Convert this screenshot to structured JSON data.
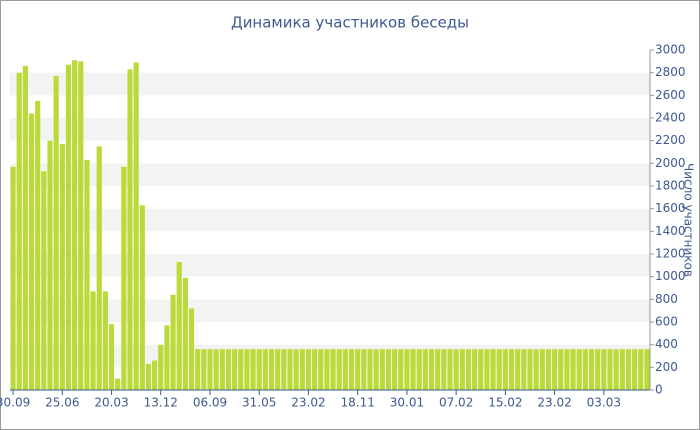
{
  "chart_data": {
    "type": "bar",
    "title": "Динамика участников беседы",
    "y_label": "Число участников",
    "color": "#bada3a",
    "categories": [
      "30.09",
      null,
      null,
      null,
      null,
      null,
      null,
      null,
      "25.06",
      null,
      null,
      null,
      null,
      null,
      null,
      null,
      "20.03",
      null,
      null,
      null,
      null,
      null,
      null,
      null,
      "13.12",
      null,
      null,
      null,
      null,
      null,
      null,
      null,
      "06.09",
      null,
      null,
      null,
      null,
      null,
      null,
      null,
      "31.05",
      null,
      null,
      null,
      null,
      null,
      null,
      null,
      "23.02",
      null,
      null,
      null,
      null,
      null,
      null,
      null,
      "18.11",
      null,
      null,
      null,
      null,
      null,
      null,
      null,
      "30.01",
      null,
      null,
      null,
      null,
      null,
      null,
      null,
      "07.02",
      null,
      null,
      null,
      null,
      null,
      null,
      null,
      "15.02",
      null,
      null,
      null,
      null,
      null,
      null,
      null,
      "23.02",
      null,
      null,
      null,
      null,
      null,
      null,
      null,
      "03.03",
      null,
      null,
      null,
      null,
      null,
      null,
      null
    ],
    "values": [
      1970,
      2800,
      2860,
      2440,
      2550,
      1930,
      2200,
      2770,
      2170,
      2870,
      2910,
      2900,
      2030,
      870,
      2150,
      870,
      580,
      100,
      1970,
      2830,
      2890,
      1630,
      230,
      260,
      400,
      570,
      840,
      1130,
      990,
      720,
      360,
      360,
      360,
      360,
      360,
      360,
      360,
      360,
      360,
      360,
      360,
      360,
      360,
      360,
      360,
      360,
      360,
      360,
      360,
      360,
      360,
      360,
      360,
      360,
      360,
      360,
      360,
      360,
      360,
      360,
      360,
      360,
      360,
      360,
      360,
      360,
      360,
      360,
      360,
      360,
      360,
      360,
      360,
      360,
      360,
      360,
      360,
      360,
      360,
      360,
      360,
      360,
      360,
      360,
      360,
      360,
      360,
      360,
      360,
      360,
      360,
      360,
      360,
      360,
      360,
      360,
      360,
      360,
      360,
      360,
      360,
      360,
      360,
      360
    ],
    "ylim": [
      0,
      3000
    ],
    "yticks": [
      0,
      200,
      400,
      600,
      800,
      1000,
      1200,
      1400,
      1600,
      1800,
      2000,
      2200,
      2400,
      2600,
      2800,
      3000
    ],
    "grid": "stripes"
  }
}
